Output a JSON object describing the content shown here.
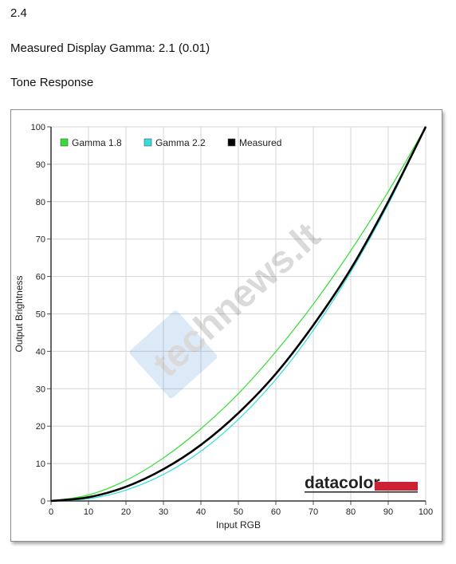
{
  "header": {
    "line1": "2.4",
    "line2": "Measured Display Gamma: 2.1 (0.01)",
    "line3": "Tone Response"
  },
  "watermark": "technews.lt",
  "logo_text": "datacolor",
  "colors": {
    "gamma18": "#33dd33",
    "gamma22": "#33dddd",
    "measured": "#000000",
    "logo_bar": "#cc2233"
  },
  "chart_data": {
    "type": "line",
    "title": "",
    "xlabel": "Input RGB",
    "ylabel": "Output Brightness",
    "xlim": [
      0,
      100
    ],
    "ylim": [
      0,
      100
    ],
    "xticks": [
      "0",
      "10",
      "20",
      "30",
      "40",
      "50",
      "60",
      "70",
      "80",
      "90",
      "100"
    ],
    "yticks": [
      "0",
      "10",
      "20",
      "30",
      "40",
      "50",
      "60",
      "70",
      "80",
      "90",
      "100"
    ],
    "grid": true,
    "legend_position": "top-left",
    "x": [
      0,
      10,
      20,
      30,
      40,
      50,
      60,
      70,
      80,
      90,
      100
    ],
    "series": [
      {
        "name": "Gamma 1.8",
        "color": "#33dd33",
        "values": [
          0,
          1.6,
          5.5,
          11.5,
          19.3,
          28.7,
          39.9,
          52.6,
          66.9,
          82.7,
          100
        ]
      },
      {
        "name": "Gamma 2.2",
        "color": "#33dddd",
        "values": [
          0,
          0.6,
          2.9,
          7.1,
          13.3,
          21.8,
          32.5,
          45.6,
          61.2,
          79.3,
          100
        ]
      },
      {
        "name": "Measured",
        "color": "#000000",
        "values": [
          0,
          1.0,
          3.8,
          8.5,
          15.0,
          23.5,
          34.0,
          47.0,
          62.0,
          80.0,
          100
        ]
      }
    ]
  }
}
